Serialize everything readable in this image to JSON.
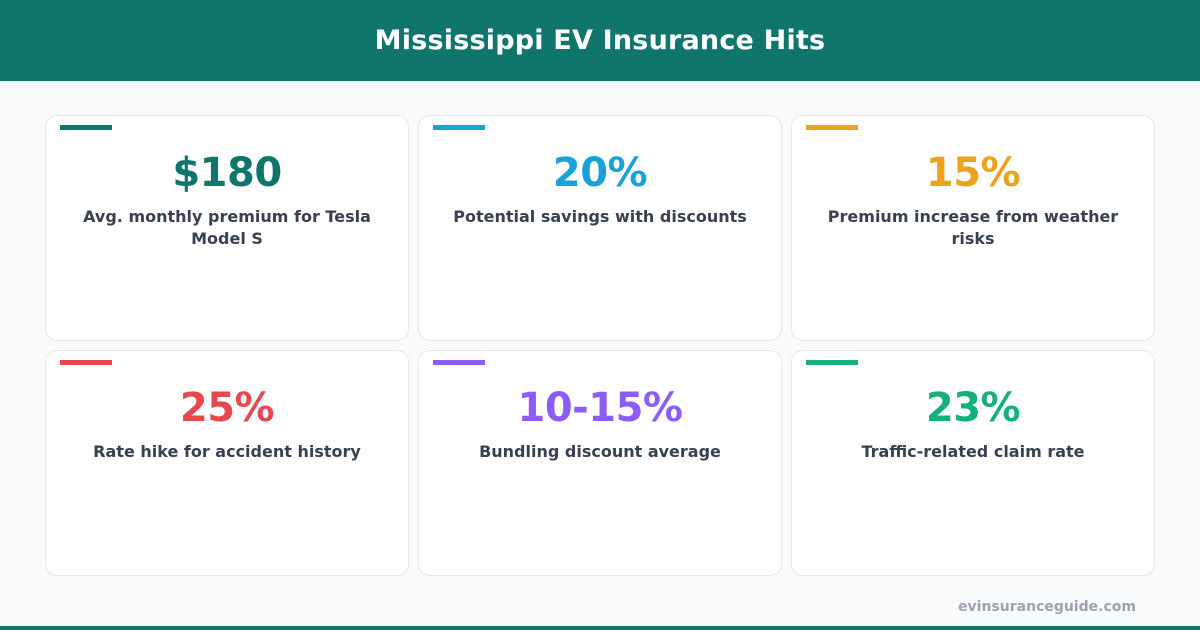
{
  "header": {
    "title": "Mississippi EV Insurance Hits"
  },
  "cards": [
    {
      "value": "$180",
      "label": "Avg. monthly premium for Tesla Model S",
      "color": "#10766c"
    },
    {
      "value": "20%",
      "label": "Potential savings with discounts",
      "color": "#17a3d8"
    },
    {
      "value": "15%",
      "label": "Premium increase from weather risks",
      "color": "#eea21a"
    },
    {
      "value": "25%",
      "label": "Rate hike for accident history",
      "color": "#e5484d"
    },
    {
      "value": "10-15%",
      "label": "Bundling discount average",
      "color": "#8b5cf6"
    },
    {
      "value": "23%",
      "label": "Traffic-related claim rate",
      "color": "#16b07c"
    }
  ],
  "footer": {
    "url": "evinsuranceguide.com"
  },
  "colors": {
    "brand": "#10766c",
    "background": "#f8fafc"
  }
}
